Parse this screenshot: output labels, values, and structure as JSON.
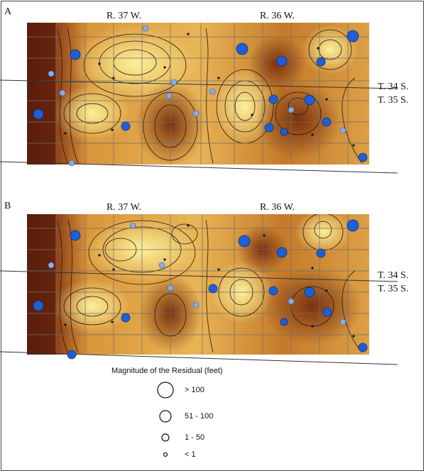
{
  "panels": [
    {
      "id": "A",
      "letter": "A",
      "range_left": "R. 37 W.",
      "range_right": "R. 36 W.",
      "township_top": "T. 34 S.",
      "township_bottom": "T. 35 S."
    },
    {
      "id": "B",
      "letter": "B",
      "range_left": "R. 37 W.",
      "range_right": "R. 36 W.",
      "township_top": "T. 34 S.",
      "township_bottom": "T. 35 S."
    }
  ],
  "legend": {
    "title": "Magnitude of the Residual (feet)",
    "items": [
      {
        "label": "> 100",
        "size_class": "largest"
      },
      {
        "label": "51 - 100",
        "size_class": "large"
      },
      {
        "label": "1 - 50",
        "size_class": "medium"
      },
      {
        "label": "< 1",
        "size_class": "small"
      }
    ]
  },
  "colors": {
    "dark_brown": "#5a1e0c",
    "mid_brown": "#a85a20",
    "orange": "#d9963a",
    "light": "#f7ea8c",
    "well_dark_blue": "#1f5fd6",
    "well_light_blue": "#86aee8"
  }
}
